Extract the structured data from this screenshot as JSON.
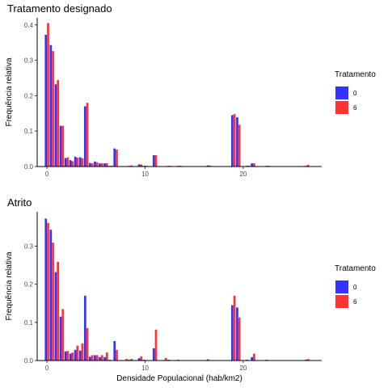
{
  "chart_data": [
    {
      "type": "bar",
      "title": "Tratamento designado",
      "xlabel": "",
      "ylabel": "Frequência relativa",
      "xlim": [
        -1,
        28
      ],
      "ylim": [
        0,
        0.42
      ],
      "x_ticks": [
        0,
        10,
        20
      ],
      "y_ticks": [
        0.0,
        0.1,
        0.2,
        0.3,
        0.4
      ],
      "x_tick_labels": [
        "0",
        "10",
        "20"
      ],
      "y_tick_labels": [
        "0.0",
        "0.1",
        "0.2",
        "0.3",
        "0.4"
      ],
      "grid": false,
      "legend": {
        "title": "Tratamento",
        "position": "right"
      },
      "categories": [
        0,
        0.5,
        1,
        1.5,
        2,
        2.5,
        3,
        3.5,
        4,
        4.5,
        5,
        5.5,
        6,
        6.5,
        7,
        7.5,
        8,
        8.5,
        9,
        9.5,
        10,
        10.5,
        11,
        11.5,
        12,
        12.5,
        13,
        13.5,
        14,
        14.5,
        15,
        15.5,
        16,
        16.5,
        17,
        17.5,
        18,
        18.5,
        19,
        19.5,
        20,
        20.5,
        21,
        21.5,
        22,
        22.5,
        23,
        23.5,
        24,
        24.5,
        25,
        25.5,
        26,
        26.5,
        27
      ],
      "series": [
        {
          "name": "0",
          "color": "#3333ff",
          "values": [
            0.372,
            0.343,
            0.232,
            0.115,
            0.024,
            0.018,
            0.028,
            0.026,
            0.17,
            0.01,
            0.014,
            0.009,
            0.009,
            0.002,
            0.051,
            0.0,
            0.0,
            0.002,
            0.0,
            0.006,
            0.002,
            0.0,
            0.032,
            0.0,
            0.0,
            0.002,
            0.0,
            0.002,
            0.0,
            0.0,
            0.0,
            0.0,
            0.0,
            0.003,
            0.0,
            0.0,
            0.0,
            0.0,
            0.145,
            0.139,
            0.0,
            0.002,
            0.009,
            0.0,
            0.0,
            0.002,
            0.0,
            0.0,
            0.0,
            0.0,
            0.0,
            0.0,
            0.0,
            0.002,
            0.0
          ]
        },
        {
          "name": "6",
          "color": "#ff3333",
          "values": [
            0.405,
            0.326,
            0.244,
            0.115,
            0.026,
            0.015,
            0.025,
            0.023,
            0.18,
            0.009,
            0.012,
            0.009,
            0.009,
            0.002,
            0.048,
            0.0,
            0.0,
            0.003,
            0.0,
            0.006,
            0.002,
            0.0,
            0.032,
            0.0,
            0.0,
            0.002,
            0.0,
            0.002,
            0.0,
            0.0,
            0.0,
            0.0,
            0.0,
            0.003,
            0.0,
            0.0,
            0.0,
            0.0,
            0.148,
            0.118,
            0.0,
            0.002,
            0.009,
            0.0,
            0.0,
            0.002,
            0.0,
            0.0,
            0.0,
            0.0,
            0.0,
            0.0,
            0.0,
            0.005,
            0.0
          ]
        }
      ]
    },
    {
      "type": "bar",
      "title": "Atrito",
      "xlabel": "Densidade Populacional (hab/km2)",
      "ylabel": "Frequência relativa",
      "xlim": [
        -1,
        28
      ],
      "ylim": [
        0,
        0.39
      ],
      "x_ticks": [
        0,
        10,
        20
      ],
      "y_ticks": [
        0.0,
        0.1,
        0.2,
        0.3
      ],
      "x_tick_labels": [
        "0",
        "10",
        "20"
      ],
      "y_tick_labels": [
        "0.0",
        "0.1",
        "0.2",
        "0.3"
      ],
      "grid": false,
      "legend": {
        "title": "Tratamento",
        "position": "right"
      },
      "categories": [
        0,
        0.5,
        1,
        1.5,
        2,
        2.5,
        3,
        3.5,
        4,
        4.5,
        5,
        5.5,
        6,
        6.5,
        7,
        7.5,
        8,
        8.5,
        9,
        9.5,
        10,
        10.5,
        11,
        11.5,
        12,
        12.5,
        13,
        13.5,
        14,
        14.5,
        15,
        15.5,
        16,
        16.5,
        17,
        17.5,
        18,
        18.5,
        19,
        19.5,
        20,
        20.5,
        21,
        21.5,
        22,
        22.5,
        23,
        23.5,
        24,
        24.5,
        25,
        25.5,
        26,
        26.5,
        27
      ],
      "series": [
        {
          "name": "0",
          "color": "#3333ff",
          "values": [
            0.372,
            0.343,
            0.232,
            0.115,
            0.024,
            0.018,
            0.028,
            0.026,
            0.17,
            0.01,
            0.014,
            0.009,
            0.009,
            0.002,
            0.051,
            0.0,
            0.0,
            0.002,
            0.0,
            0.006,
            0.002,
            0.0,
            0.032,
            0.0,
            0.0,
            0.002,
            0.0,
            0.002,
            0.0,
            0.0,
            0.0,
            0.0,
            0.0,
            0.003,
            0.0,
            0.0,
            0.0,
            0.0,
            0.145,
            0.139,
            0.0,
            0.002,
            0.009,
            0.0,
            0.0,
            0.002,
            0.0,
            0.0,
            0.0,
            0.0,
            0.0,
            0.0,
            0.0,
            0.002,
            0.0
          ]
        },
        {
          "name": "6",
          "color": "#ff3333",
          "values": [
            0.361,
            0.309,
            0.259,
            0.135,
            0.025,
            0.021,
            0.039,
            0.045,
            0.085,
            0.014,
            0.014,
            0.014,
            0.021,
            0.0,
            0.028,
            0.0,
            0.004,
            0.004,
            0.0,
            0.011,
            0.0,
            0.0,
            0.081,
            0.0,
            0.007,
            0.0,
            0.0,
            0.0,
            0.0,
            0.0,
            0.0,
            0.0,
            0.0,
            0.0,
            0.0,
            0.0,
            0.0,
            0.0,
            0.17,
            0.113,
            0.0,
            0.0,
            0.018,
            0.0,
            0.0,
            0.0,
            0.0,
            0.0,
            0.0,
            0.0,
            0.0,
            0.0,
            0.0,
            0.004,
            0.0
          ]
        }
      ]
    }
  ]
}
